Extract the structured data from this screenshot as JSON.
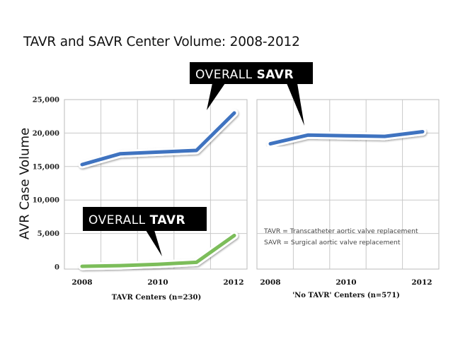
{
  "chart_data": [
    {
      "type": "line",
      "panel": "left",
      "title": "TAVR and SAVR Center Volume: 2008-2012",
      "xlabel": "TAVR Centers (n=230)",
      "ylabel": "AVR Case Volume",
      "x": [
        2008,
        2009,
        2010,
        2011,
        2012
      ],
      "xticks": [
        "2008",
        "2010",
        "2012"
      ],
      "yticks": [
        "0",
        "5,000",
        "10,000",
        "15,000",
        "20,000",
        "25,000"
      ],
      "ylim": [
        0,
        25000
      ],
      "grid": true,
      "series": [
        {
          "name": "Overall SAVR",
          "color": "#3f73c0",
          "values": [
            15300,
            16900,
            17150,
            17400,
            23000
          ]
        },
        {
          "name": "Overall TAVR",
          "color": "#7cbd5a",
          "values": [
            100,
            200,
            400,
            700,
            4700
          ]
        }
      ]
    },
    {
      "type": "line",
      "panel": "right",
      "xlabel": "'No TAVR' Centers (n=571)",
      "x": [
        2008,
        2009,
        2010,
        2011,
        2012
      ],
      "xticks": [
        "2008",
        "2010",
        "2012"
      ],
      "ylim": [
        0,
        25000
      ],
      "grid": true,
      "series": [
        {
          "name": "Overall SAVR",
          "color": "#3f73c0",
          "values": [
            18400,
            19700,
            19600,
            19500,
            20200
          ]
        }
      ],
      "annotations": [
        "TAVR = Transcatheter aortic valve replacement",
        "SAVR = Surgical aortic valve replacement"
      ]
    }
  ],
  "callouts": {
    "savr": {
      "regular": "OVERALL ",
      "bold": "SAVR"
    },
    "tavr": {
      "regular": "OVERALL ",
      "bold": "TAVR"
    }
  }
}
